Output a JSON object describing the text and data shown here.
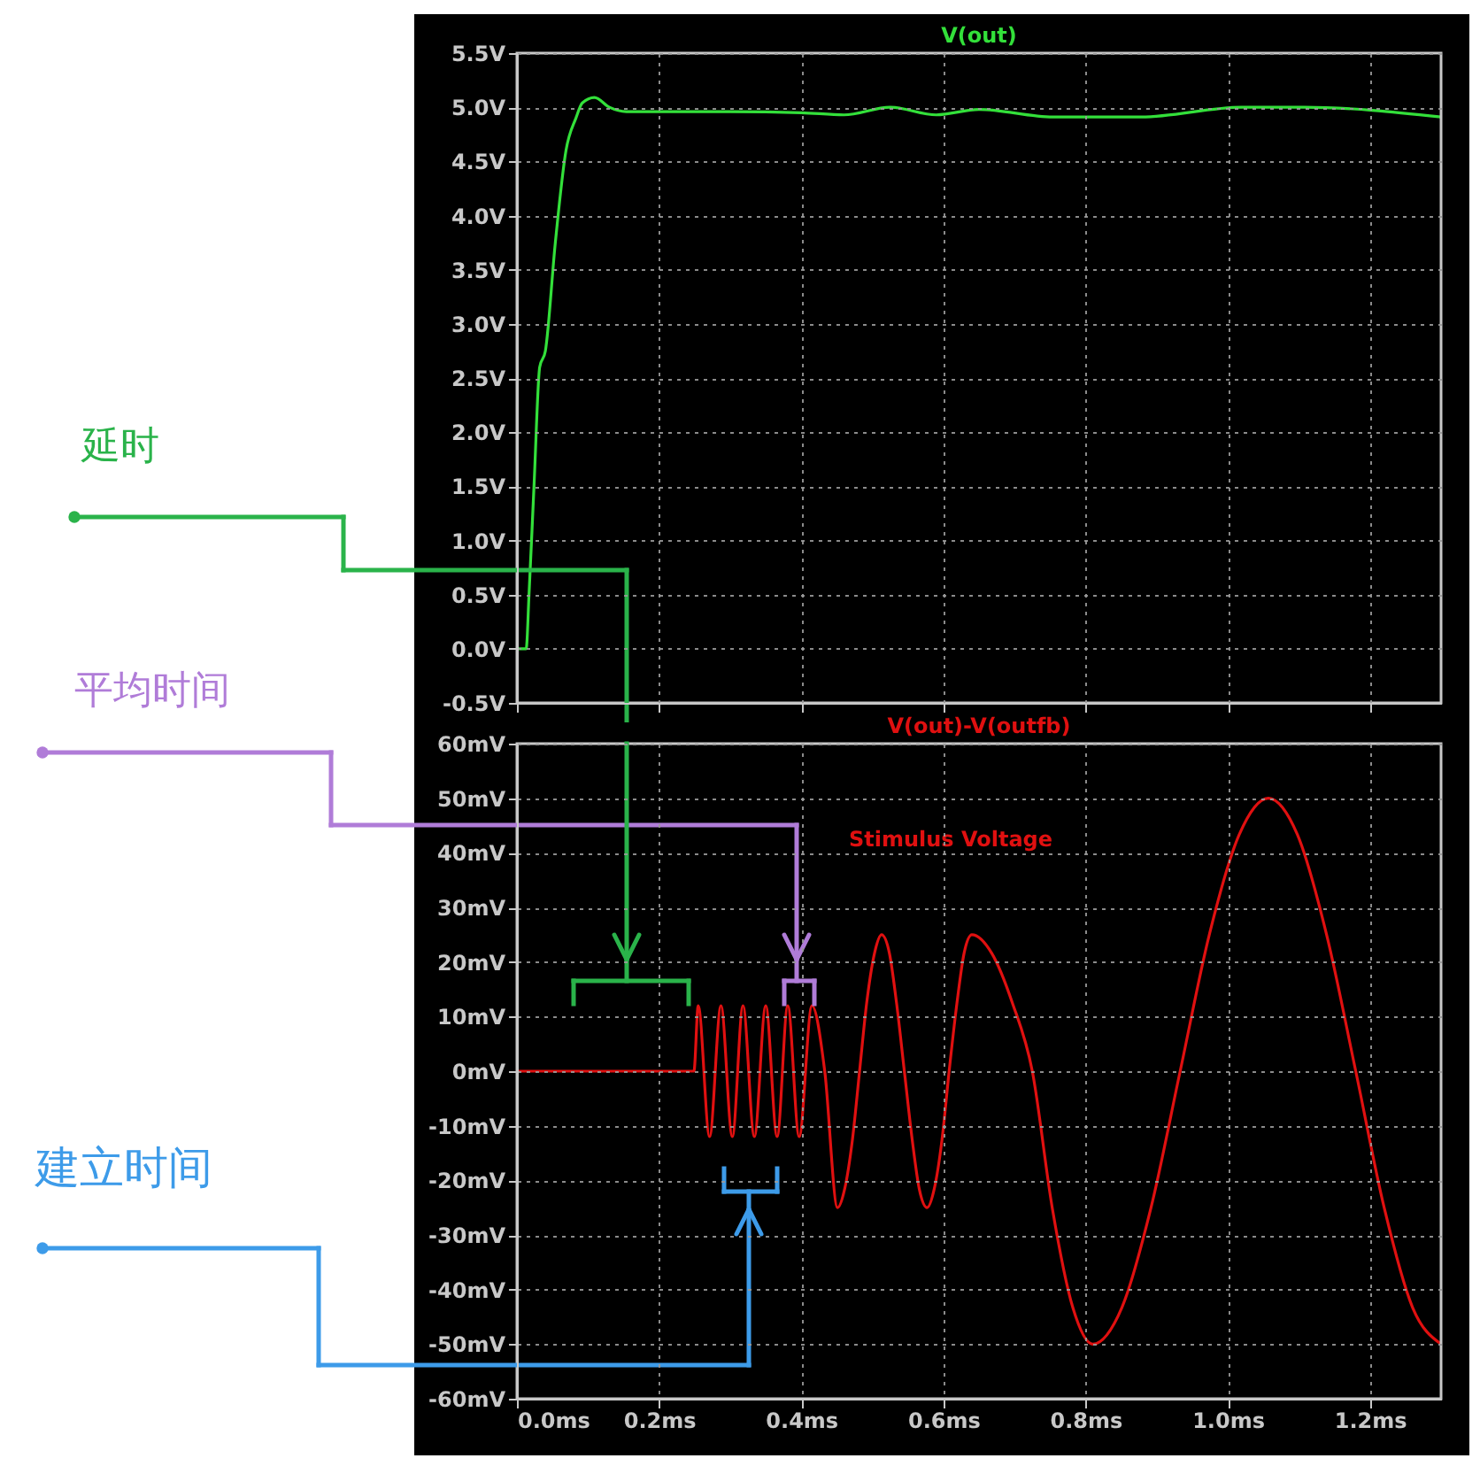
{
  "chart_data": [
    {
      "type": "line",
      "title": "V(out)",
      "xlim": [
        0,
        1.3
      ],
      "xticks": [
        0,
        0.2,
        0.4,
        0.6,
        0.8,
        1.0,
        1.2
      ],
      "ylim": [
        -0.5,
        5.5
      ],
      "yticks": [
        {
          "value": -0.5,
          "label": "-0.5V"
        },
        {
          "value": 0,
          "label": "0.0V"
        },
        {
          "value": 0.5,
          "label": "0.5V"
        },
        {
          "value": 1,
          "label": "1.0V"
        },
        {
          "value": 1.5,
          "label": "1.5V"
        },
        {
          "value": 2,
          "label": "2.0V"
        },
        {
          "value": 2.5,
          "label": "2.5V"
        },
        {
          "value": 3,
          "label": "3.0V"
        },
        {
          "value": 3.5,
          "label": "3.5V"
        },
        {
          "value": 4,
          "label": "4.0V"
        },
        {
          "value": 4.5,
          "label": "4.5V"
        },
        {
          "value": 5,
          "label": "5.0V"
        },
        {
          "value": 5.5,
          "label": "5.5V"
        }
      ],
      "tick_labels": "y",
      "grid": true,
      "marker": "none",
      "line_style": "solid",
      "annotations": [
        "延时"
      ],
      "series": [
        {
          "color": "#33e03a",
          "x": [
            0,
            0.013,
            0.017,
            0.024,
            0.032,
            0.04,
            0.054,
            0.069,
            0.083,
            0.092,
            0.109,
            0.13,
            0.154,
            0.3,
            0.4,
            0.46,
            0.525,
            0.59,
            0.65,
            0.754,
            0.878,
            1.02,
            1.107,
            1.3
          ],
          "values": [
            0,
            0,
            0.5,
            1.5,
            2.6,
            2.75,
            3.75,
            4.6,
            4.9,
            5.04,
            5.09,
            5.0,
            4.96,
            4.96,
            4.95,
            4.93,
            5.0,
            4.93,
            4.98,
            4.91,
            4.91,
            5.0,
            5.0,
            4.91
          ]
        }
      ]
    },
    {
      "type": "line",
      "title": "V(out)-V(outfb)",
      "xlim": [
        0,
        1.3
      ],
      "xticks": [
        {
          "value": 0,
          "label": "0.0ms"
        },
        {
          "value": 0.2,
          "label": "0.2ms"
        },
        {
          "value": 0.4,
          "label": "0.4ms"
        },
        {
          "value": 0.6,
          "label": "0.6ms"
        },
        {
          "value": 0.8,
          "label": "0.8ms"
        },
        {
          "value": 1.0,
          "label": "1.0ms"
        },
        {
          "value": 1.2,
          "label": "1.2ms"
        }
      ],
      "ylim": [
        -60,
        60
      ],
      "yticks": [
        {
          "value": -60,
          "label": "-60mV"
        },
        {
          "value": -50,
          "label": "-50mV"
        },
        {
          "value": -40,
          "label": "-40mV"
        },
        {
          "value": -30,
          "label": "-30mV"
        },
        {
          "value": -20,
          "label": "-20mV"
        },
        {
          "value": -10,
          "label": "-10mV"
        },
        {
          "value": 0,
          "label": "0mV"
        },
        {
          "value": 10,
          "label": "10mV"
        },
        {
          "value": 20,
          "label": "20mV"
        },
        {
          "value": 30,
          "label": "30mV"
        },
        {
          "value": 40,
          "label": "40mV"
        },
        {
          "value": 50,
          "label": "50mV"
        },
        {
          "value": 60,
          "label": "60mV"
        }
      ],
      "grid": true,
      "marker": "none",
      "line_style": "solid",
      "annotations": [
        "Stimulus Voltage",
        "平均时间",
        "建立时间"
      ],
      "series": [
        {
          "color": "#e01010",
          "x": [
            0,
            0.249,
            0.255,
            0.271,
            0.287,
            0.303,
            0.318,
            0.334,
            0.35,
            0.366,
            0.381,
            0.397,
            0.415,
            0.433,
            0.451,
            0.461,
            0.472,
            0.482,
            0.492,
            0.503,
            0.513,
            0.524,
            0.534,
            0.545,
            0.556,
            0.566,
            0.577,
            0.587,
            0.598,
            0.608,
            0.619,
            0.629,
            0.64,
            0.668,
            0.697,
            0.725,
            0.753,
            0.782,
            0.81,
            0.851,
            0.892,
            0.933,
            0.974,
            1.016,
            1.057,
            1.098,
            1.139,
            1.18,
            1.22,
            1.26,
            1.3
          ],
          "values": [
            0,
            0,
            12,
            -12,
            12,
            -12,
            12,
            -12,
            12,
            -12,
            12,
            -12,
            12,
            0,
            -25,
            -21.6,
            -12.5,
            0,
            12.5,
            21.6,
            25,
            21.6,
            12.5,
            0,
            -12.5,
            -21.6,
            -25,
            -21.6,
            -12.5,
            0,
            12.5,
            21.6,
            25,
            21.6,
            12.5,
            0,
            -25,
            -43.3,
            -50,
            -43.3,
            -25,
            0,
            25,
            43.3,
            50,
            43.3,
            25,
            0,
            -25,
            -43.3,
            -50
          ]
        }
      ]
    }
  ]
}
